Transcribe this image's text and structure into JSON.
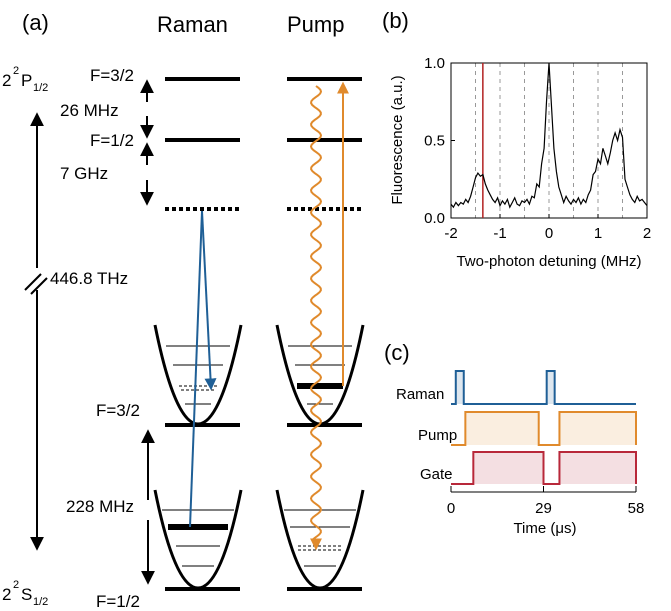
{
  "panels": {
    "a": "(a)",
    "b": "(b)",
    "c": "(c)"
  },
  "columns": {
    "raman": "Raman",
    "pump": "Pump"
  },
  "levels": {
    "p_state_main": "2",
    "p_state_sup": "2",
    "p_state_letter": "P",
    "p_state_sub": "1/2",
    "s_state_main": "2",
    "s_state_sup": "2",
    "s_state_letter": "S",
    "s_state_sub": "1/2",
    "f32_top": "F=3/2",
    "f12_top": "F=1/2",
    "split_p": "26 MHz",
    "detuning": "7 GHz",
    "optical": "446.8 THz",
    "f32_ground": "F=3/2",
    "split_s": "228 MHz",
    "f12_ground": "F=1/2"
  },
  "chart_data": {
    "type": "line",
    "title": "",
    "xlabel": "Two-photon detuning (MHz)",
    "ylabel": "Fluorescence (a.u.)",
    "xlim": [
      -2,
      2
    ],
    "ylim": [
      0,
      1
    ],
    "xticks": [
      "-2",
      "-1",
      "0",
      "1",
      "2"
    ],
    "yticks": [
      "0.0",
      "0.5",
      "1.0"
    ],
    "grid": "dashed vertical lines every 0.5 MHz",
    "marker_line_x": -1.35,
    "marker_line_color": "#b22222",
    "line_color": "#000000",
    "x": [
      -2.0,
      -1.95,
      -1.9,
      -1.85,
      -1.8,
      -1.75,
      -1.7,
      -1.65,
      -1.6,
      -1.55,
      -1.5,
      -1.45,
      -1.4,
      -1.35,
      -1.3,
      -1.25,
      -1.2,
      -1.15,
      -1.1,
      -1.05,
      -1.0,
      -0.95,
      -0.9,
      -0.85,
      -0.8,
      -0.75,
      -0.7,
      -0.65,
      -0.6,
      -0.55,
      -0.5,
      -0.45,
      -0.4,
      -0.35,
      -0.3,
      -0.25,
      -0.2,
      -0.15,
      -0.1,
      -0.05,
      0.0,
      0.05,
      0.1,
      0.15,
      0.2,
      0.25,
      0.3,
      0.35,
      0.4,
      0.45,
      0.5,
      0.55,
      0.6,
      0.65,
      0.7,
      0.75,
      0.8,
      0.85,
      0.9,
      0.95,
      1.0,
      1.05,
      1.1,
      1.15,
      1.2,
      1.25,
      1.3,
      1.35,
      1.4,
      1.45,
      1.5,
      1.55,
      1.6,
      1.65,
      1.7,
      1.75,
      1.8,
      1.85,
      1.9,
      1.95,
      2.0
    ],
    "y": [
      0.09,
      0.07,
      0.1,
      0.08,
      0.1,
      0.09,
      0.12,
      0.1,
      0.14,
      0.2,
      0.26,
      0.29,
      0.27,
      0.28,
      0.22,
      0.18,
      0.15,
      0.12,
      0.1,
      0.13,
      0.08,
      0.11,
      0.09,
      0.12,
      0.07,
      0.1,
      0.13,
      0.09,
      0.08,
      0.11,
      0.1,
      0.12,
      0.09,
      0.14,
      0.13,
      0.22,
      0.2,
      0.35,
      0.45,
      0.75,
      1.0,
      0.72,
      0.45,
      0.3,
      0.2,
      0.15,
      0.1,
      0.14,
      0.11,
      0.09,
      0.12,
      0.1,
      0.13,
      0.09,
      0.12,
      0.1,
      0.15,
      0.18,
      0.28,
      0.3,
      0.38,
      0.35,
      0.45,
      0.4,
      0.35,
      0.42,
      0.5,
      0.55,
      0.5,
      0.57,
      0.52,
      0.25,
      0.2,
      0.15,
      0.12,
      0.1,
      0.14,
      0.11,
      0.12,
      0.1,
      0.08
    ]
  },
  "timing": {
    "labels": [
      "Raman",
      "Pump",
      "Gate"
    ],
    "xlabel": "Time (μs)",
    "xticks": [
      "0",
      "29",
      "58"
    ],
    "t_max": 58,
    "raman_pulses": [
      [
        1.5,
        4
      ],
      [
        30,
        32.5
      ]
    ],
    "pump_on": [
      [
        4.5,
        27.5
      ],
      [
        34,
        58
      ]
    ],
    "gate_on": [
      [
        7,
        29
      ],
      [
        34,
        58
      ]
    ],
    "colors": {
      "raman": "#1f5f96",
      "pump": "#e08a2c",
      "gate": "#b8283a"
    }
  }
}
